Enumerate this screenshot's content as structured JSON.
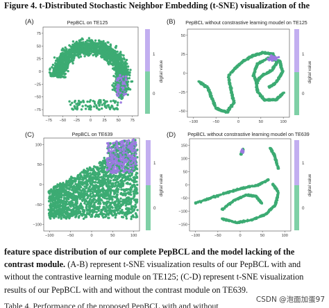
{
  "figure_title": "Figure 4. t-Distributed Stochastic Neighbor Embedding (t-SNE) visualization of the",
  "colors": {
    "green": "#3cab73",
    "purple": "#9b7be0",
    "cbar_top": "#c2aef0",
    "cbar_bottom": "#7fd0a6"
  },
  "panels": [
    {
      "label": "(A)",
      "title": "PepBCL on TE125",
      "cbar_label": "digital value",
      "cbar_ticks": [
        "1",
        "0"
      ]
    },
    {
      "label": "(B)",
      "title": "PepBCL without constrastive learning moudel on TE125",
      "cbar_label": "digital value",
      "cbar_ticks": [
        "1",
        "0"
      ]
    },
    {
      "label": "(C)",
      "title": "PepBCL on TE639",
      "cbar_label": "digital value",
      "cbar_ticks": [
        "1",
        "0"
      ]
    },
    {
      "label": "(D)",
      "title": "PepBCL without constrastive learning moudel on TE639",
      "cbar_label": "digital value",
      "cbar_ticks": [
        "1",
        "0"
      ]
    }
  ],
  "chart_data": [
    {
      "type": "scatter",
      "title": "PepBCL on TE125",
      "xlim": [
        -75,
        75
      ],
      "ylim": [
        -75,
        75
      ],
      "xticks": [
        "−75",
        "−50",
        "−25",
        "0",
        "25",
        "50",
        "75"
      ],
      "yticks": [
        "75",
        "50",
        "25",
        "0",
        "−25",
        "−50",
        "−75"
      ],
      "series": [
        {
          "name": "0",
          "color": "green"
        },
        {
          "name": "1",
          "color": "purple"
        }
      ],
      "legend": "colorbar-right"
    },
    {
      "type": "scatter",
      "title": "PepBCL without constrastive learning moudel on TE125",
      "xlim": [
        -125,
        125
      ],
      "ylim": [
        -75,
        75
      ],
      "xticks": [
        "−100",
        "−50",
        "0",
        "50",
        "100"
      ],
      "yticks": [
        "50",
        "25",
        "0",
        "−25",
        "−50"
      ],
      "series": [
        {
          "name": "0",
          "color": "green"
        },
        {
          "name": "1",
          "color": "purple"
        }
      ],
      "legend": "colorbar-right"
    },
    {
      "type": "scatter",
      "title": "PepBCL on TE639",
      "xlim": [
        -115,
        115
      ],
      "ylim": [
        -105,
        105
      ],
      "xticks": [
        "−100",
        "−50",
        "0",
        "50",
        "100"
      ],
      "yticks": [
        "100",
        "50",
        "0",
        "−50",
        "−100"
      ],
      "series": [
        {
          "name": "0",
          "color": "green"
        },
        {
          "name": "1",
          "color": "purple"
        }
      ],
      "legend": "colorbar-right"
    },
    {
      "type": "scatter",
      "title": "PepBCL without constrastive learning moudel on TE639",
      "xlim": [
        -115,
        115
      ],
      "ylim": [
        -160,
        160
      ],
      "xticks": [
        "−100",
        "−50",
        "0",
        "50",
        "100"
      ],
      "yticks": [
        "150",
        "100",
        "50",
        "0",
        "−50",
        "−100",
        "−150"
      ],
      "series": [
        {
          "name": "0",
          "color": "green"
        },
        {
          "name": "1",
          "color": "purple"
        }
      ],
      "legend": "colorbar-right"
    }
  ],
  "caption": {
    "line1_bold": "feature space distribution of our complete PepBCL and the model lacking of the",
    "line2_bold": "contrast module.",
    "line2_rest": " (A-B) represent t-SNE visualization results of our PepBCL with and",
    "line3": "without the contrastive learning module on TE125; (C-D) represent t-SNE visualization",
    "line4": "results of our PepBCL with and without the contrast module on TE639."
  },
  "footer_partial": "Table 4. Performance of the proposed PepBCL with and without",
  "watermark": "CSDN @泡面加蛋97"
}
